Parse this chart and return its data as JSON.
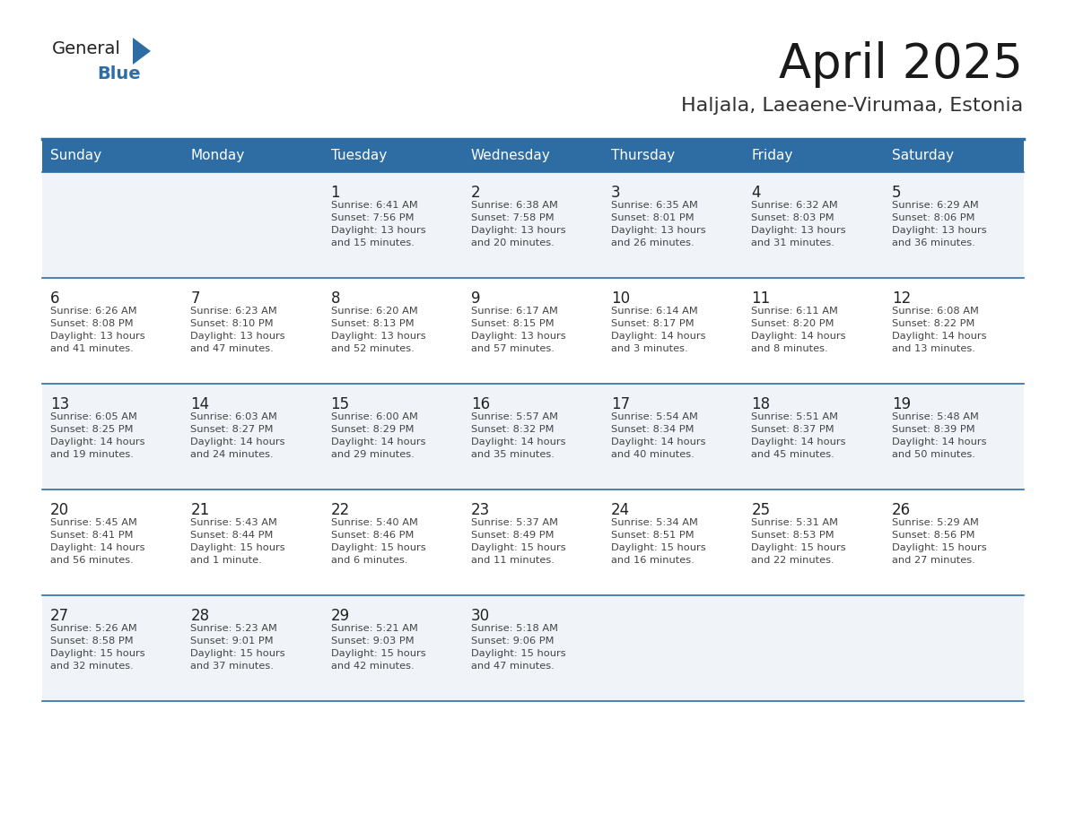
{
  "title": "April 2025",
  "subtitle": "Haljala, Laeaene-Virumaa, Estonia",
  "header_color": "#2E6DA4",
  "header_text_color": "#FFFFFF",
  "cell_bg_even": "#F0F4F8",
  "cell_bg_odd": "#FFFFFF",
  "text_color": "#333333",
  "day_num_color": "#222222",
  "days_of_week": [
    "Sunday",
    "Monday",
    "Tuesday",
    "Wednesday",
    "Thursday",
    "Friday",
    "Saturday"
  ],
  "weeks": [
    [
      {
        "day": "",
        "info": ""
      },
      {
        "day": "",
        "info": ""
      },
      {
        "day": "1",
        "info": "Sunrise: 6:41 AM\nSunset: 7:56 PM\nDaylight: 13 hours\nand 15 minutes."
      },
      {
        "day": "2",
        "info": "Sunrise: 6:38 AM\nSunset: 7:58 PM\nDaylight: 13 hours\nand 20 minutes."
      },
      {
        "day": "3",
        "info": "Sunrise: 6:35 AM\nSunset: 8:01 PM\nDaylight: 13 hours\nand 26 minutes."
      },
      {
        "day": "4",
        "info": "Sunrise: 6:32 AM\nSunset: 8:03 PM\nDaylight: 13 hours\nand 31 minutes."
      },
      {
        "day": "5",
        "info": "Sunrise: 6:29 AM\nSunset: 8:06 PM\nDaylight: 13 hours\nand 36 minutes."
      }
    ],
    [
      {
        "day": "6",
        "info": "Sunrise: 6:26 AM\nSunset: 8:08 PM\nDaylight: 13 hours\nand 41 minutes."
      },
      {
        "day": "7",
        "info": "Sunrise: 6:23 AM\nSunset: 8:10 PM\nDaylight: 13 hours\nand 47 minutes."
      },
      {
        "day": "8",
        "info": "Sunrise: 6:20 AM\nSunset: 8:13 PM\nDaylight: 13 hours\nand 52 minutes."
      },
      {
        "day": "9",
        "info": "Sunrise: 6:17 AM\nSunset: 8:15 PM\nDaylight: 13 hours\nand 57 minutes."
      },
      {
        "day": "10",
        "info": "Sunrise: 6:14 AM\nSunset: 8:17 PM\nDaylight: 14 hours\nand 3 minutes."
      },
      {
        "day": "11",
        "info": "Sunrise: 6:11 AM\nSunset: 8:20 PM\nDaylight: 14 hours\nand 8 minutes."
      },
      {
        "day": "12",
        "info": "Sunrise: 6:08 AM\nSunset: 8:22 PM\nDaylight: 14 hours\nand 13 minutes."
      }
    ],
    [
      {
        "day": "13",
        "info": "Sunrise: 6:05 AM\nSunset: 8:25 PM\nDaylight: 14 hours\nand 19 minutes."
      },
      {
        "day": "14",
        "info": "Sunrise: 6:03 AM\nSunset: 8:27 PM\nDaylight: 14 hours\nand 24 minutes."
      },
      {
        "day": "15",
        "info": "Sunrise: 6:00 AM\nSunset: 8:29 PM\nDaylight: 14 hours\nand 29 minutes."
      },
      {
        "day": "16",
        "info": "Sunrise: 5:57 AM\nSunset: 8:32 PM\nDaylight: 14 hours\nand 35 minutes."
      },
      {
        "day": "17",
        "info": "Sunrise: 5:54 AM\nSunset: 8:34 PM\nDaylight: 14 hours\nand 40 minutes."
      },
      {
        "day": "18",
        "info": "Sunrise: 5:51 AM\nSunset: 8:37 PM\nDaylight: 14 hours\nand 45 minutes."
      },
      {
        "day": "19",
        "info": "Sunrise: 5:48 AM\nSunset: 8:39 PM\nDaylight: 14 hours\nand 50 minutes."
      }
    ],
    [
      {
        "day": "20",
        "info": "Sunrise: 5:45 AM\nSunset: 8:41 PM\nDaylight: 14 hours\nand 56 minutes."
      },
      {
        "day": "21",
        "info": "Sunrise: 5:43 AM\nSunset: 8:44 PM\nDaylight: 15 hours\nand 1 minute."
      },
      {
        "day": "22",
        "info": "Sunrise: 5:40 AM\nSunset: 8:46 PM\nDaylight: 15 hours\nand 6 minutes."
      },
      {
        "day": "23",
        "info": "Sunrise: 5:37 AM\nSunset: 8:49 PM\nDaylight: 15 hours\nand 11 minutes."
      },
      {
        "day": "24",
        "info": "Sunrise: 5:34 AM\nSunset: 8:51 PM\nDaylight: 15 hours\nand 16 minutes."
      },
      {
        "day": "25",
        "info": "Sunrise: 5:31 AM\nSunset: 8:53 PM\nDaylight: 15 hours\nand 22 minutes."
      },
      {
        "day": "26",
        "info": "Sunrise: 5:29 AM\nSunset: 8:56 PM\nDaylight: 15 hours\nand 27 minutes."
      }
    ],
    [
      {
        "day": "27",
        "info": "Sunrise: 5:26 AM\nSunset: 8:58 PM\nDaylight: 15 hours\nand 32 minutes."
      },
      {
        "day": "28",
        "info": "Sunrise: 5:23 AM\nSunset: 9:01 PM\nDaylight: 15 hours\nand 37 minutes."
      },
      {
        "day": "29",
        "info": "Sunrise: 5:21 AM\nSunset: 9:03 PM\nDaylight: 15 hours\nand 42 minutes."
      },
      {
        "day": "30",
        "info": "Sunrise: 5:18 AM\nSunset: 9:06 PM\nDaylight: 15 hours\nand 47 minutes."
      },
      {
        "day": "",
        "info": ""
      },
      {
        "day": "",
        "info": ""
      },
      {
        "day": "",
        "info": ""
      }
    ]
  ]
}
